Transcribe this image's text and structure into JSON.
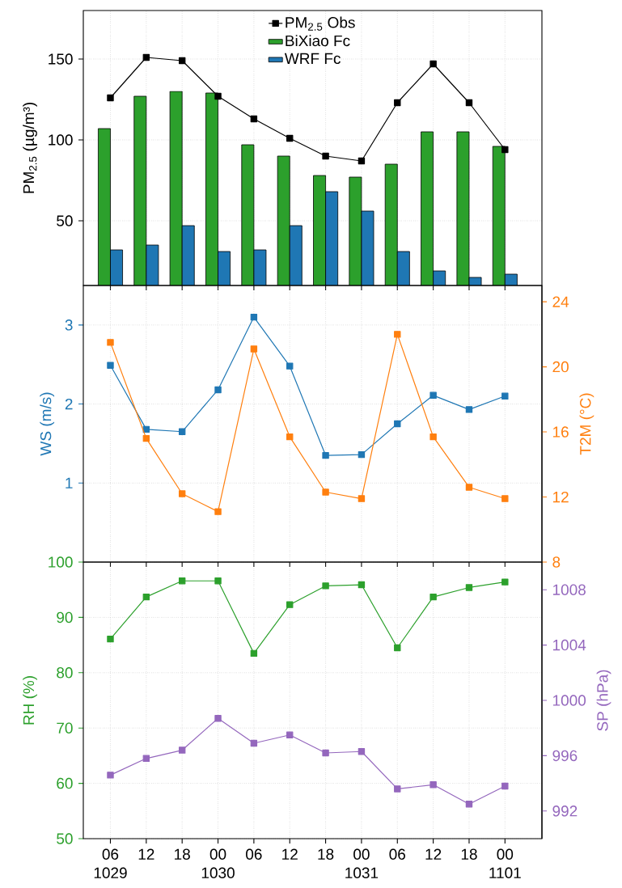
{
  "chart_data": [
    {
      "type": "bar",
      "ylabel": "PM$_{2.5}$ (µg/m³)",
      "categories": [
        null,
        null,
        null,
        null,
        null,
        null,
        null,
        null,
        null,
        null,
        null,
        null
      ],
      "series": [
        {
          "name": "PM$_{2.5}$ Obs",
          "type": "line",
          "color": "#000000",
          "values": [
            126,
            151,
            149,
            127,
            113,
            101,
            90,
            87,
            123,
            147,
            123,
            94
          ]
        },
        {
          "name": "BiXiao Fc",
          "type": "bar",
          "color": "#2ca02c",
          "values": [
            107,
            127,
            130,
            129,
            97,
            90,
            78,
            77,
            85,
            105,
            105,
            96
          ]
        },
        {
          "name": "WRF Fc",
          "type": "bar",
          "color": "#1f77b4",
          "values": [
            32,
            35,
            47,
            31,
            32,
            47,
            68,
            56,
            31,
            19,
            15,
            17
          ]
        }
      ],
      "ylim": [
        10,
        180
      ],
      "yticks": [
        50,
        100,
        150
      ],
      "grid": true,
      "legend": "top",
      "marker": "square",
      "line_style": "solid",
      "tick_labels": "y"
    },
    {
      "type": "line",
      "ylabel": "WS (m/s)",
      "y2label": "T2M (°C)",
      "categories": [
        null,
        null,
        null,
        null,
        null,
        null,
        null,
        null,
        null,
        null,
        null,
        null
      ],
      "series": [
        {
          "color": "#1f77b4",
          "values": [
            2.49,
            1.68,
            1.65,
            2.18,
            3.1,
            2.48,
            1.35,
            1.36,
            1.75,
            2.11,
            1.93,
            2.1
          ]
        },
        {
          "color": "#ff7f0e",
          "axis": "y2",
          "values": [
            21.5,
            15.6,
            12.2,
            11.1,
            21.1,
            15.7,
            12.3,
            11.9,
            22,
            15.7,
            12.6,
            11.9
          ]
        }
      ],
      "ylim": [
        0,
        3.5
      ],
      "yticks": [
        1,
        2,
        3
      ],
      "y2lim": [
        8,
        25
      ],
      "y2ticks": [
        8,
        12,
        16,
        20,
        24
      ],
      "grid": true,
      "marker": "square",
      "line_style": "solid",
      "tick_labels": "y"
    },
    {
      "type": "line",
      "ylabel": "RH (%)",
      "y2label": "SP (hPa)",
      "categories": [
        "06\n1029",
        "12",
        "18",
        "00\n1030",
        "06",
        "12",
        "18",
        "00\n1031",
        "06",
        "12",
        "18",
        "00\n1101"
      ],
      "series": [
        {
          "color": "#2ca02c",
          "values": [
            86.1,
            93.7,
            96.6,
            96.6,
            83.5,
            92.3,
            95.7,
            95.9,
            84.5,
            93.7,
            95.4,
            96.4
          ]
        },
        {
          "color": "#9467bd",
          "axis": "y2",
          "values": [
            994.6,
            995.8,
            996.4,
            998.7,
            996.9,
            997.5,
            996.2,
            996.3,
            993.6,
            993.9,
            992.5,
            993.8
          ]
        }
      ],
      "ylim": [
        50,
        100
      ],
      "yticks": [
        50,
        60,
        70,
        80,
        90,
        100
      ],
      "y2lim": [
        990,
        1010
      ],
      "y2ticks": [
        992,
        996,
        1000,
        1004,
        1008
      ],
      "grid": true,
      "marker": "square",
      "line_style": "solid"
    }
  ]
}
